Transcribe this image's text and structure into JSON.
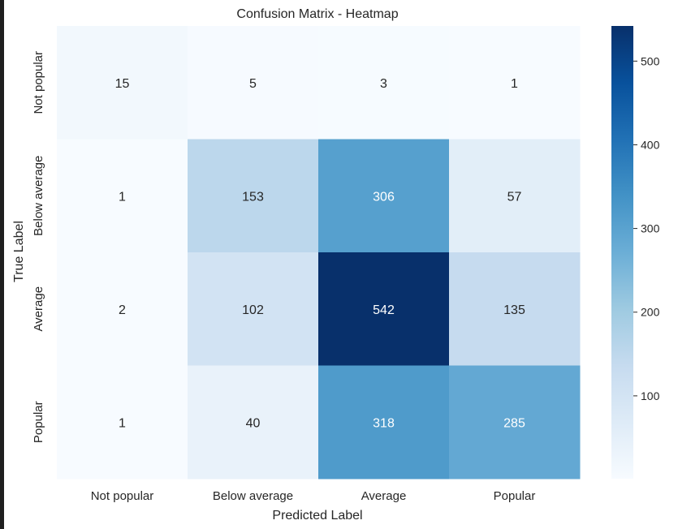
{
  "chart_data": {
    "type": "heatmap",
    "title": "Confusion Matrix - Heatmap",
    "xlabel": "Predicted Label",
    "ylabel": "True Label",
    "x_categories": [
      "Not popular",
      "Below average",
      "Average",
      "Popular"
    ],
    "y_categories": [
      "Not popular",
      "Below average",
      "Average",
      "Popular"
    ],
    "values": [
      [
        15,
        5,
        3,
        1
      ],
      [
        1,
        153,
        306,
        57
      ],
      [
        2,
        102,
        542,
        135
      ],
      [
        1,
        40,
        318,
        285
      ]
    ],
    "colorbar": {
      "min": 1,
      "max": 542,
      "ticks": [
        100,
        200,
        300,
        400,
        500
      ],
      "colormap": "Blues"
    },
    "grid": false
  }
}
